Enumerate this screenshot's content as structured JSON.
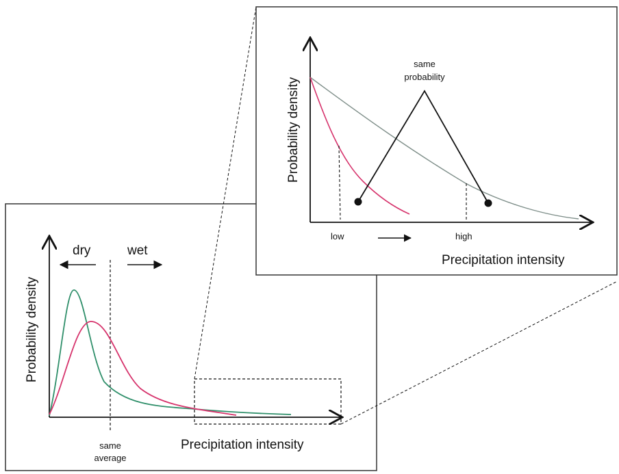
{
  "main_panel": {
    "ylabel": "Probability density",
    "xlabel": "Precipitation intensity",
    "dry_label": "dry",
    "wet_label": "wet",
    "same_average_line1": "same",
    "same_average_line2": "average"
  },
  "inset_panel": {
    "ylabel": "Probability density",
    "xlabel": "Precipitation intensity",
    "same_probability_line1": "same",
    "same_probability_line2": "probability",
    "low_label": "low",
    "high_label": "high"
  },
  "colors": {
    "green_curve": "#2f8f6a",
    "red_curve": "#d6336c",
    "inset_gray_curve": "#7f8f8a",
    "ink": "#111111",
    "panel_border": "#333333"
  }
}
